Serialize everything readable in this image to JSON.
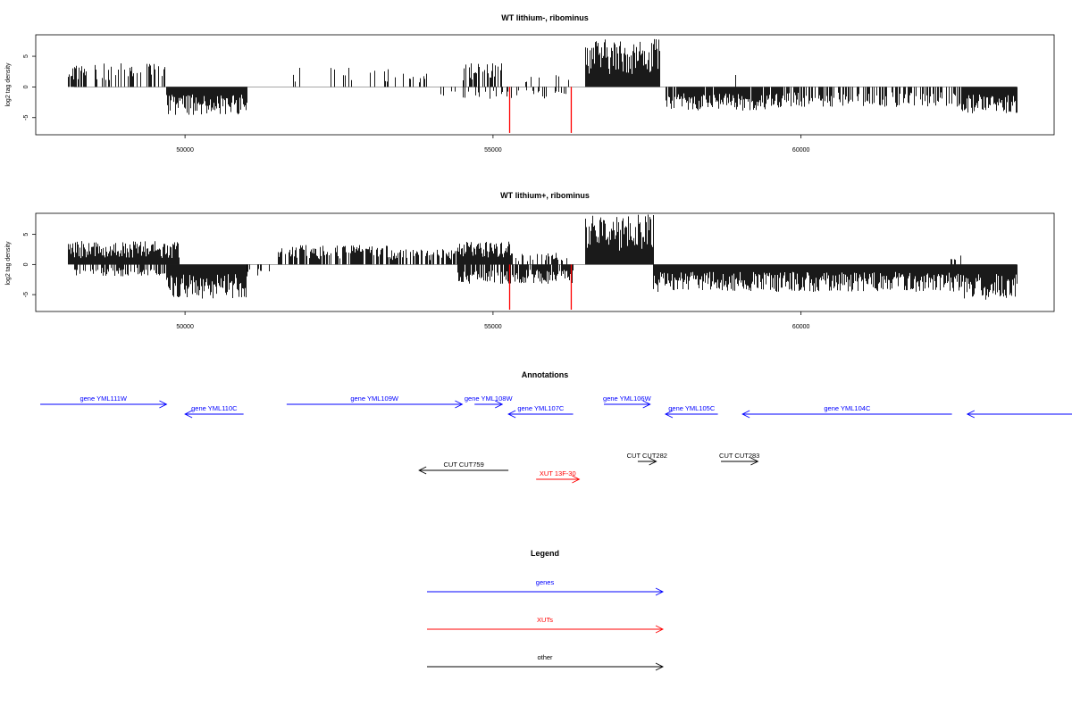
{
  "chart_data": [
    {
      "type": "bar",
      "title": "WT lithium-, ribominus",
      "ylabel": "log2 tag density",
      "xlim": [
        48100,
        63900
      ],
      "ylim": [
        -7.8,
        8.5
      ],
      "x_ticks": [
        50000,
        55000,
        60000
      ],
      "x_tick_labels": [
        "50000",
        "55000",
        "60000"
      ],
      "y_ticks": [
        -5,
        0,
        5
      ],
      "y_tick_labels": [
        "-5",
        "0",
        "5"
      ],
      "plus_strand_segments": [
        {
          "x_start": 48100,
          "x_end": 48400,
          "level": 3,
          "density": 0.8
        },
        {
          "x_start": 48500,
          "x_end": 49700,
          "level": 3,
          "density": 0.35
        },
        {
          "x_start": 51500,
          "x_end": 53300,
          "level": 2.5,
          "density": 0.12
        },
        {
          "x_start": 53400,
          "x_end": 54000,
          "level": 2,
          "density": 0.15
        },
        {
          "x_start": 54500,
          "x_end": 55200,
          "level": 3,
          "density": 0.5
        },
        {
          "x_start": 55200,
          "x_end": 56300,
          "level": 1.5,
          "density": 0.1
        },
        {
          "x_start": 56500,
          "x_end": 57700,
          "level": 6,
          "density": 1
        },
        {
          "x_start": 58900,
          "x_end": 59000,
          "level": 2,
          "density": 0.3
        }
      ],
      "minus_strand_segments": [
        {
          "x_start": 49700,
          "x_end": 51000,
          "level": -3.5,
          "density": 1
        },
        {
          "x_start": 54100,
          "x_end": 54500,
          "level": -1.5,
          "density": 0.2
        },
        {
          "x_start": 54500,
          "x_end": 56200,
          "level": -1.5,
          "density": 0.25
        },
        {
          "x_start": 57800,
          "x_end": 59700,
          "level": -3,
          "density": 0.9
        },
        {
          "x_start": 59700,
          "x_end": 62600,
          "level": -2.5,
          "density": 0.5
        },
        {
          "x_start": 62600,
          "x_end": 63500,
          "level": -3.5,
          "density": 1
        }
      ],
      "highlight_lines": [
        {
          "x": 55270,
          "y": -7.5,
          "color": "#ff0000"
        },
        {
          "x": 56270,
          "y": -7.5,
          "color": "#ff0000"
        }
      ],
      "bar_color": "#000000"
    },
    {
      "type": "bar",
      "title": "WT lithium+, ribominus",
      "ylabel": "log2 tag density",
      "xlim": [
        48100,
        63900
      ],
      "ylim": [
        -7.8,
        8.5
      ],
      "x_ticks": [
        50000,
        55000,
        60000
      ],
      "x_tick_labels": [
        "50000",
        "55000",
        "60000"
      ],
      "y_ticks": [
        -5,
        0,
        5
      ],
      "y_tick_labels": [
        "-5",
        "0",
        "5"
      ],
      "plus_strand_segments": [
        {
          "x_start": 48100,
          "x_end": 49900,
          "level": 3,
          "density": 1
        },
        {
          "x_start": 51500,
          "x_end": 53300,
          "level": 2.5,
          "density": 0.7
        },
        {
          "x_start": 53300,
          "x_end": 54400,
          "level": 2,
          "density": 0.6
        },
        {
          "x_start": 54400,
          "x_end": 55300,
          "level": 3,
          "density": 1
        },
        {
          "x_start": 55300,
          "x_end": 56300,
          "level": 1.5,
          "density": 0.4
        },
        {
          "x_start": 56500,
          "x_end": 57600,
          "level": 6.5,
          "density": 1
        },
        {
          "x_start": 62400,
          "x_end": 62600,
          "level": 1.5,
          "density": 0.3
        }
      ],
      "minus_strand_segments": [
        {
          "x_start": 48200,
          "x_end": 49700,
          "level": -1.5,
          "density": 0.5
        },
        {
          "x_start": 49700,
          "x_end": 51000,
          "level": -4.5,
          "density": 1
        },
        {
          "x_start": 51000,
          "x_end": 51400,
          "level": -1.5,
          "density": 0.3
        },
        {
          "x_start": 54400,
          "x_end": 56300,
          "level": -2.5,
          "density": 0.8
        },
        {
          "x_start": 57600,
          "x_end": 62600,
          "level": -3.5,
          "density": 1
        },
        {
          "x_start": 62600,
          "x_end": 63500,
          "level": -4.5,
          "density": 1
        }
      ],
      "highlight_lines": [
        {
          "x": 55270,
          "y": -7.5,
          "color": "#ff0000"
        },
        {
          "x": 56270,
          "y": -7.5,
          "color": "#ff0000"
        }
      ],
      "bar_color": "#000000"
    }
  ],
  "annotations": {
    "title": "Annotations",
    "xlim": [
      48100,
      63900
    ],
    "features": [
      {
        "label": "gene YML111W",
        "start": 47650,
        "end": 49700,
        "strand": "+",
        "row": 0,
        "color": "#0000ff"
      },
      {
        "label": "gene YML110C",
        "start": 50000,
        "end": 50950,
        "strand": "-",
        "row": 1,
        "color": "#0000ff"
      },
      {
        "label": "gene YML109W",
        "start": 51650,
        "end": 54500,
        "strand": "+",
        "row": 0,
        "color": "#0000ff"
      },
      {
        "label": "gene YML108W",
        "start": 54700,
        "end": 55150,
        "strand": "+",
        "row": 0,
        "color": "#0000ff"
      },
      {
        "label": "gene YML107C",
        "start": 55250,
        "end": 56300,
        "strand": "-",
        "row": 1,
        "color": "#0000ff"
      },
      {
        "label": "gene YML106W",
        "start": 56800,
        "end": 57550,
        "strand": "+",
        "row": 0,
        "color": "#0000ff"
      },
      {
        "label": "gene YML105C",
        "start": 57800,
        "end": 58650,
        "strand": "-",
        "row": 1,
        "color": "#0000ff"
      },
      {
        "label": "gene YML104C",
        "start": 59050,
        "end": 62450,
        "strand": "-",
        "row": 1,
        "color": "#0000ff"
      },
      {
        "label": "",
        "start": 62700,
        "end": 64900,
        "strand": "-",
        "row": 1,
        "color": "#0000ff"
      },
      {
        "label": "CUT CUT759",
        "start": 53800,
        "end": 55250,
        "strand": "-",
        "row": 3,
        "color": "#000000"
      },
      {
        "label": "CUT CUT282",
        "start": 57350,
        "end": 57650,
        "strand": "+",
        "row": 2,
        "color": "#000000"
      },
      {
        "label": "CUT CUT283",
        "start": 58700,
        "end": 59300,
        "strand": "+",
        "row": 2,
        "color": "#000000"
      },
      {
        "label": "XUT 13F-30",
        "start": 55700,
        "end": 56400,
        "strand": "+",
        "row": 4,
        "color": "#ff0000"
      }
    ]
  },
  "legend": {
    "title": "Legend",
    "items": [
      {
        "label": "genes",
        "color": "#0000ff"
      },
      {
        "label": "XUTs",
        "color": "#ff0000"
      },
      {
        "label": "other",
        "color": "#000000"
      }
    ]
  }
}
